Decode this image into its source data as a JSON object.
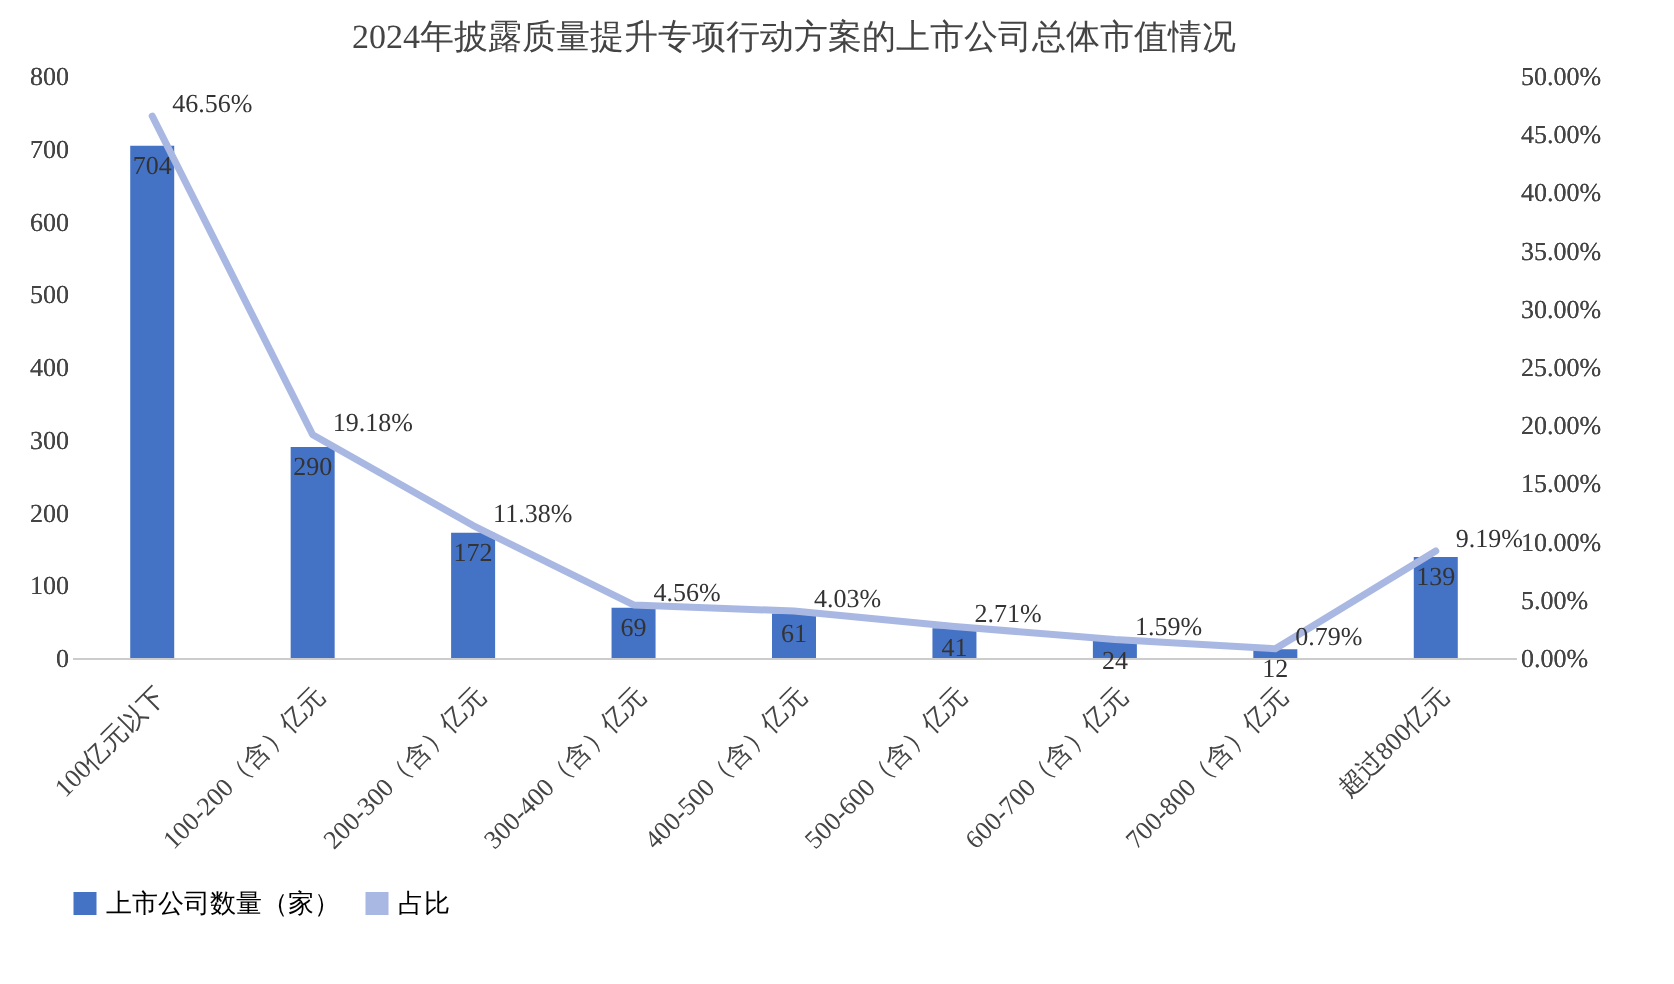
{
  "chart_data": {
    "type": "bar",
    "title": "2024年披露质量提升专项行动方案的上市公司总体市值情况",
    "categories": [
      "100亿元以下",
      "100-200（含）亿元",
      "200-300（含）亿元",
      "300-400（含）亿元",
      "400-500（含）亿元",
      "500-600（含）亿元",
      "600-700（含）亿元",
      "700-800（含）亿元",
      "超过800亿元"
    ],
    "series": [
      {
        "name": "上市公司数量（家）",
        "color": "#4472c4",
        "values": [
          704,
          290,
          172,
          69,
          61,
          41,
          24,
          12,
          139
        ],
        "value_labels": [
          "704",
          "290",
          "172",
          "69",
          "61",
          "41",
          "24",
          "12",
          "139"
        ]
      },
      {
        "name": "占比",
        "type": "line",
        "axis": "y2",
        "color": "#a9b8e3",
        "values": [
          46.56,
          19.18,
          11.38,
          4.56,
          4.03,
          2.71,
          1.59,
          0.79,
          9.19
        ],
        "value_labels": [
          "46.56%",
          "19.18%",
          "11.38%",
          "4.56%",
          "4.03%",
          "2.71%",
          "1.59%",
          "0.79%",
          "9.19%"
        ]
      }
    ],
    "ylim": [
      0,
      800
    ],
    "yticks": [
      0,
      100,
      200,
      300,
      400,
      500,
      600,
      700,
      800
    ],
    "y2lim": [
      0,
      50
    ],
    "y2ticks": [
      {
        "value": 0,
        "label": "0.00%"
      },
      {
        "value": 5,
        "label": "5.00%"
      },
      {
        "value": 10,
        "label": "10.00%"
      },
      {
        "value": 15,
        "label": "15.00%"
      },
      {
        "value": 20,
        "label": "20.00%"
      },
      {
        "value": 25,
        "label": "25.00%"
      },
      {
        "value": 30,
        "label": "30.00%"
      },
      {
        "value": 35,
        "label": "35.00%"
      },
      {
        "value": 40,
        "label": "40.00%"
      },
      {
        "value": 45,
        "label": "45.00%"
      },
      {
        "value": 50,
        "label": "50.00%"
      }
    ],
    "legend": "bottom",
    "grid": false
  }
}
